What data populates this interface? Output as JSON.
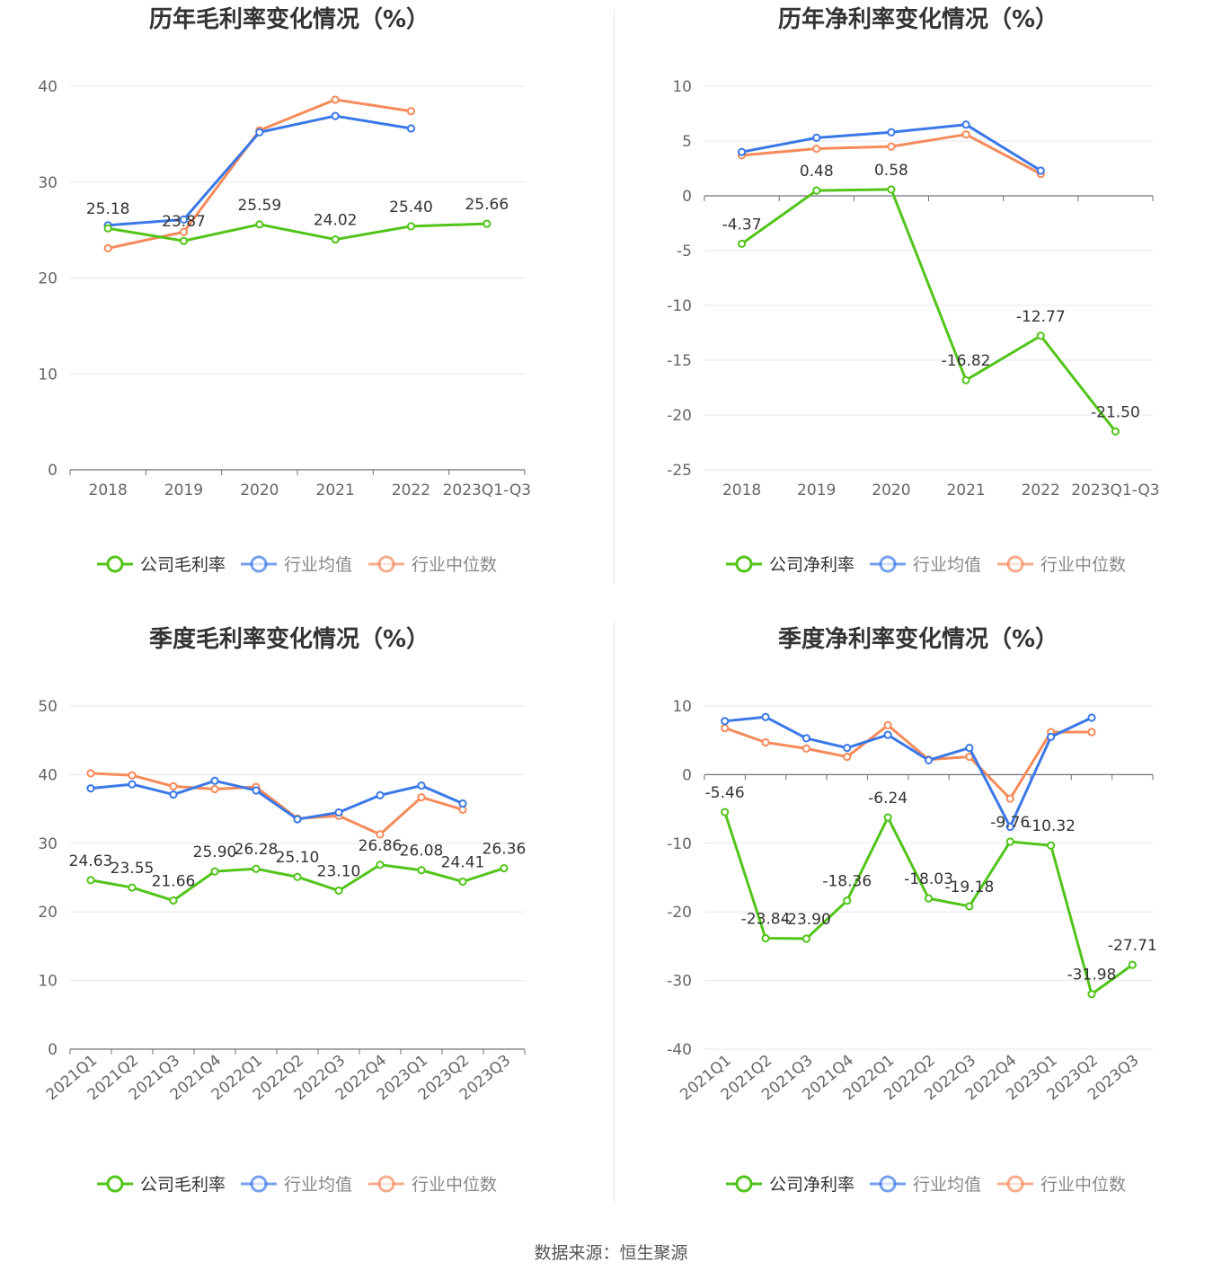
{
  "footer": "数据来源：恒生聚源",
  "colors": {
    "company": "#52c41a",
    "avg": "#3b78e7",
    "median": "#f58a5b"
  },
  "chart_data": [
    {
      "type": "line",
      "title": "历年毛利率变化情况（%）",
      "categories": [
        "2018",
        "2019",
        "2020",
        "2021",
        "2022",
        "2023Q1-Q3"
      ],
      "ylim": [
        0,
        40
      ],
      "yticks": [
        0,
        10,
        20,
        30,
        40
      ],
      "label_series": 0,
      "series": [
        {
          "name": "公司毛利率",
          "values": [
            25.18,
            23.87,
            25.59,
            24.02,
            25.4,
            25.66
          ]
        },
        {
          "name": "行业均值",
          "values": [
            25.5,
            26.1,
            35.2,
            36.9,
            35.6,
            null
          ]
        },
        {
          "name": "行业中位数",
          "values": [
            23.1,
            24.8,
            35.4,
            38.6,
            37.4,
            null
          ]
        }
      ],
      "legend": "bottom",
      "grid": true
    },
    {
      "type": "line",
      "title": "历年净利率变化情况（%）",
      "categories": [
        "2018",
        "2019",
        "2020",
        "2021",
        "2022",
        "2023Q1-Q3"
      ],
      "ylim": [
        -25,
        10
      ],
      "yticks": [
        -25,
        -20,
        -15,
        -10,
        -5,
        0,
        5,
        10
      ],
      "label_series": 0,
      "series": [
        {
          "name": "公司净利率",
          "values": [
            -4.37,
            0.48,
            0.58,
            -16.82,
            -12.77,
            -21.5
          ]
        },
        {
          "name": "行业均值",
          "values": [
            4.0,
            5.3,
            5.8,
            6.5,
            2.3,
            null
          ]
        },
        {
          "name": "行业中位数",
          "values": [
            3.7,
            4.3,
            4.5,
            5.6,
            2.0,
            null
          ]
        }
      ],
      "legend": "bottom",
      "grid": true
    },
    {
      "type": "line",
      "title": "季度毛利率变化情况（%）",
      "categories": [
        "2021Q1",
        "2021Q2",
        "2021Q3",
        "2021Q4",
        "2022Q1",
        "2022Q2",
        "2022Q3",
        "2022Q4",
        "2023Q1",
        "2023Q2",
        "2023Q3"
      ],
      "ylim": [
        0,
        50
      ],
      "yticks": [
        0,
        10,
        20,
        30,
        40,
        50
      ],
      "label_series": 0,
      "series": [
        {
          "name": "公司毛利率",
          "values": [
            24.63,
            23.55,
            21.66,
            25.9,
            26.28,
            25.1,
            23.1,
            26.86,
            26.08,
            24.41,
            26.36
          ]
        },
        {
          "name": "行业均值",
          "values": [
            38.0,
            38.6,
            37.1,
            39.1,
            37.7,
            33.5,
            34.5,
            37.0,
            38.4,
            35.8,
            null
          ]
        },
        {
          "name": "行业中位数",
          "values": [
            40.2,
            39.9,
            38.3,
            37.9,
            38.2,
            33.6,
            34.0,
            31.3,
            36.7,
            34.9,
            null
          ]
        }
      ],
      "legend": "bottom",
      "grid": true
    },
    {
      "type": "line",
      "title": "季度净利率变化情况（%）",
      "categories": [
        "2021Q1",
        "2021Q2",
        "2021Q3",
        "2021Q4",
        "2022Q1",
        "2022Q2",
        "2022Q3",
        "2022Q4",
        "2023Q1",
        "2023Q2",
        "2023Q3"
      ],
      "ylim": [
        -40,
        10
      ],
      "yticks": [
        -40,
        -30,
        -20,
        -10,
        0,
        10
      ],
      "label_series": 0,
      "series": [
        {
          "name": "公司净利率",
          "values": [
            -5.46,
            -23.84,
            -23.9,
            -18.36,
            -6.24,
            -18.03,
            -19.18,
            -9.76,
            -10.32,
            -31.98,
            -27.71
          ]
        },
        {
          "name": "行业均值",
          "values": [
            7.8,
            8.4,
            5.3,
            3.9,
            5.8,
            2.1,
            3.9,
            -7.6,
            5.5,
            8.3,
            null
          ]
        },
        {
          "name": "行业中位数",
          "values": [
            6.8,
            4.7,
            3.8,
            2.6,
            7.2,
            2.2,
            2.6,
            -3.5,
            6.2,
            6.2,
            null
          ]
        }
      ],
      "legend": "bottom",
      "grid": true
    }
  ]
}
